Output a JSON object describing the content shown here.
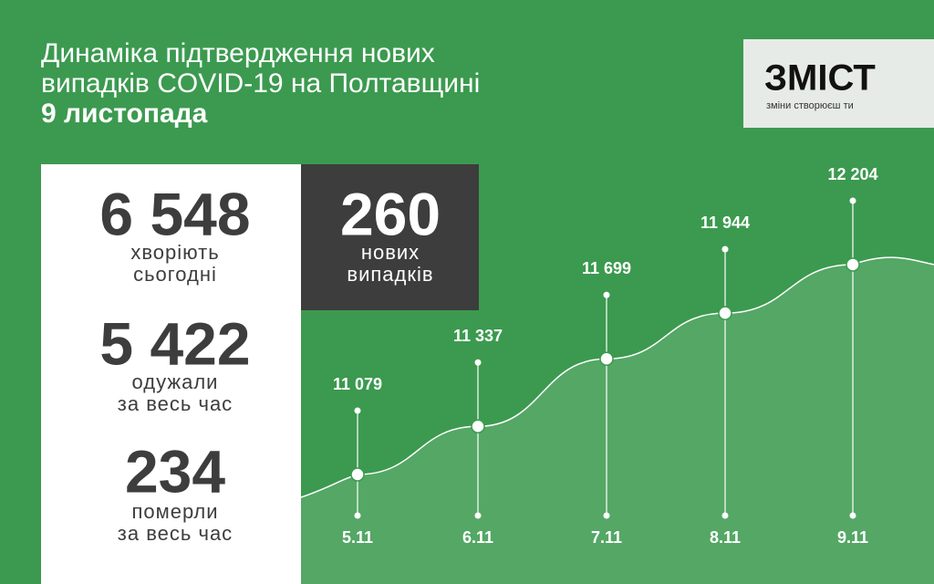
{
  "header": {
    "title_lines": [
      "Динаміка підтвердження нових",
      "випадків COVID-19 на Полтавщині"
    ],
    "date": "9 листопада"
  },
  "logo": {
    "name": "ЗМІСТ",
    "slogan": "зміни створюєш ти"
  },
  "stats": {
    "sick": {
      "number": "6 548",
      "lines": [
        "хворіють",
        "сьогодні"
      ]
    },
    "new": {
      "number": "260",
      "lines": [
        "нових",
        "випадків"
      ]
    },
    "recovered": {
      "number": "5 422",
      "lines": [
        "одужали",
        "за весь час"
      ]
    },
    "died": {
      "number": "234",
      "lines": [
        "померли",
        "за весь час"
      ]
    }
  },
  "chart_data": {
    "type": "line",
    "categories": [
      "5.11",
      "6.11",
      "7.11",
      "8.11",
      "9.11"
    ],
    "values": [
      11079,
      11337,
      11699,
      11944,
      12204
    ],
    "value_labels": [
      "11 079",
      "11 337",
      "11 699",
      "11 944",
      "12 204"
    ],
    "color": "#ffffff"
  }
}
